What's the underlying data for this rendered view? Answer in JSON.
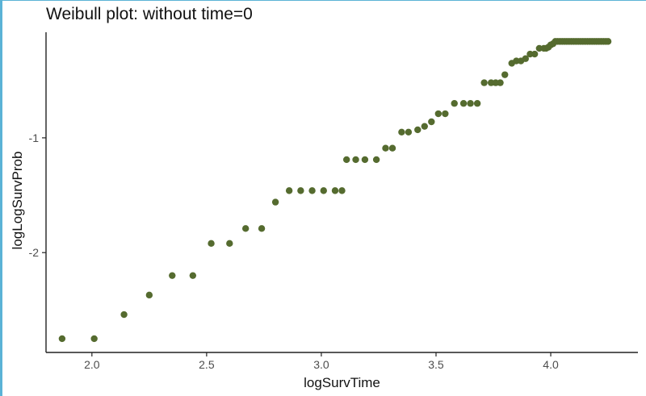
{
  "colors": {
    "point": "#556b2f",
    "axis": "#222222",
    "text": "#4d4d4d",
    "accent": "#5bb3d6"
  },
  "chart_data": {
    "type": "scatter",
    "title": "Weibull plot: without time=0",
    "xlabel": "logSurvTime",
    "ylabel": "logLogSurvProb",
    "xlim": [
      1.8,
      4.38
    ],
    "ylim": [
      -2.87,
      -0.08
    ],
    "xticks": [
      2.0,
      2.5,
      3.0,
      3.5,
      4.0
    ],
    "yticks": [
      -2,
      -1
    ],
    "xtick_labels": [
      "2.0",
      "2.5",
      "3.0",
      "3.5",
      "4.0"
    ],
    "ytick_labels": [
      "-2",
      "-1"
    ],
    "grid": false,
    "series": [
      {
        "points": [
          [
            1.87,
            -2.75
          ],
          [
            2.01,
            -2.75
          ],
          [
            2.14,
            -2.54
          ],
          [
            2.25,
            -2.37
          ],
          [
            2.35,
            -2.2
          ],
          [
            2.44,
            -2.2
          ],
          [
            2.52,
            -1.92
          ],
          [
            2.6,
            -1.92
          ],
          [
            2.67,
            -1.79
          ],
          [
            2.74,
            -1.79
          ],
          [
            2.8,
            -1.56
          ],
          [
            2.86,
            -1.46
          ],
          [
            2.91,
            -1.46
          ],
          [
            2.96,
            -1.46
          ],
          [
            3.01,
            -1.46
          ],
          [
            3.06,
            -1.46
          ],
          [
            3.09,
            -1.46
          ],
          [
            3.11,
            -1.19
          ],
          [
            3.15,
            -1.19
          ],
          [
            3.19,
            -1.19
          ],
          [
            3.24,
            -1.19
          ],
          [
            3.28,
            -1.09
          ],
          [
            3.31,
            -1.09
          ],
          [
            3.35,
            -0.95
          ],
          [
            3.38,
            -0.95
          ],
          [
            3.42,
            -0.93
          ],
          [
            3.45,
            -0.9
          ],
          [
            3.48,
            -0.86
          ],
          [
            3.51,
            -0.79
          ],
          [
            3.54,
            -0.79
          ],
          [
            3.58,
            -0.7
          ],
          [
            3.62,
            -0.7
          ],
          [
            3.65,
            -0.7
          ],
          [
            3.68,
            -0.7
          ],
          [
            3.71,
            -0.52
          ],
          [
            3.74,
            -0.52
          ],
          [
            3.76,
            -0.52
          ],
          [
            3.78,
            -0.52
          ],
          [
            3.8,
            -0.45
          ],
          [
            3.83,
            -0.35
          ],
          [
            3.85,
            -0.33
          ],
          [
            3.87,
            -0.33
          ],
          [
            3.89,
            -0.31
          ],
          [
            3.91,
            -0.27
          ],
          [
            3.93,
            -0.27
          ],
          [
            3.95,
            -0.22
          ],
          [
            3.97,
            -0.22
          ],
          [
            3.98,
            -0.22
          ],
          [
            3.99,
            -0.21
          ],
          [
            4.0,
            -0.19
          ],
          [
            4.01,
            -0.18
          ],
          [
            4.02,
            -0.16
          ],
          [
            4.03,
            -0.16
          ],
          [
            4.04,
            -0.16
          ],
          [
            4.05,
            -0.16
          ],
          [
            4.06,
            -0.16
          ],
          [
            4.07,
            -0.16
          ],
          [
            4.08,
            -0.16
          ],
          [
            4.09,
            -0.16
          ],
          [
            4.1,
            -0.16
          ],
          [
            4.11,
            -0.16
          ],
          [
            4.12,
            -0.16
          ],
          [
            4.13,
            -0.16
          ],
          [
            4.14,
            -0.16
          ],
          [
            4.15,
            -0.16
          ],
          [
            4.16,
            -0.16
          ],
          [
            4.17,
            -0.16
          ],
          [
            4.18,
            -0.16
          ],
          [
            4.19,
            -0.16
          ],
          [
            4.2,
            -0.16
          ],
          [
            4.21,
            -0.16
          ],
          [
            4.22,
            -0.16
          ],
          [
            4.23,
            -0.16
          ],
          [
            4.24,
            -0.16
          ],
          [
            4.25,
            -0.16
          ]
        ]
      }
    ]
  }
}
